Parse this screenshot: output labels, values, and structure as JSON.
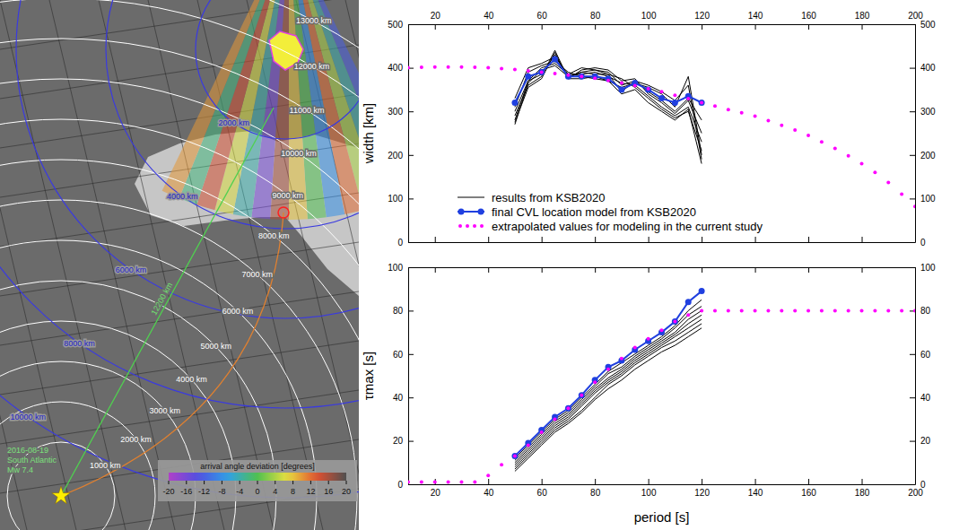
{
  "map": {
    "type": "map",
    "event_label": [
      "2016-08-19",
      "South Atlantic",
      "Mw 7.4"
    ],
    "epicentral_distances": [
      {
        "value": 1000,
        "label": "1000 km"
      },
      {
        "value": 2000,
        "label": "2000 km"
      },
      {
        "value": 3000,
        "label": "3000 km"
      },
      {
        "value": 4000,
        "label": "4000 km"
      },
      {
        "value": 5000,
        "label": "5000 km"
      },
      {
        "value": 6000,
        "label": "6000 km"
      },
      {
        "value": 7000,
        "label": "7000 km"
      },
      {
        "value": 8000,
        "label": "8000 km"
      },
      {
        "value": 9000,
        "label": "9000 km"
      },
      {
        "value": 10000,
        "label": "10000 km"
      },
      {
        "value": 11000,
        "label": "11000 km"
      },
      {
        "value": 12000,
        "label": "12000 km"
      },
      {
        "value": 13000,
        "label": "13000 km"
      }
    ],
    "station_distances": [
      {
        "value": 2000,
        "label": "2000 km"
      },
      {
        "value": 4000,
        "label": "4000 km"
      },
      {
        "value": 6000,
        "label": "6000 km"
      },
      {
        "value": 8000,
        "label": "8000 km"
      },
      {
        "value": 10000,
        "label": "10000 km"
      }
    ],
    "path_label": "12200 km",
    "beam_deviations": [
      -12,
      -4,
      4,
      12,
      -8,
      0,
      8,
      16,
      -16,
      -4,
      6,
      14,
      -2,
      10
    ],
    "colorbar": {
      "label": "arrival angle deviation [degrees]",
      "range": [
        -20,
        20
      ],
      "ticks": [
        -20,
        -16,
        -12,
        -8,
        -4,
        0,
        4,
        8,
        12,
        16,
        20
      ]
    }
  },
  "chart_data": [
    {
      "type": "line",
      "ylabel": "width [km]",
      "xlim": [
        10,
        200
      ],
      "xticks": [
        20,
        40,
        60,
        80,
        100,
        120,
        140,
        160,
        180,
        200
      ],
      "ylim": [
        0,
        500
      ],
      "yticks": [
        0,
        100,
        200,
        300,
        400,
        500
      ],
      "legend": "lower left",
      "series": [
        {
          "name": "results from KSB2020",
          "color": "#000000",
          "line_style": "solid",
          "x": [
            50,
            55,
            60,
            65,
            70,
            75,
            80,
            85,
            90,
            95,
            100,
            105,
            110,
            115,
            120
          ],
          "values": [
            320,
            380,
            390,
            420,
            380,
            380,
            380,
            375,
            350,
            365,
            350,
            330,
            320,
            335,
            320
          ]
        },
        {
          "color": "#000000",
          "line_style": "solid",
          "x": [
            50,
            55,
            60,
            65,
            70,
            75,
            80,
            85,
            90,
            95,
            100,
            105,
            110,
            115,
            120
          ],
          "values": [
            300,
            370,
            385,
            430,
            378,
            390,
            395,
            390,
            360,
            370,
            345,
            325,
            300,
            330,
            280
          ]
        },
        {
          "color": "#000000",
          "line_style": "solid",
          "x": [
            50,
            55,
            60,
            65,
            70,
            75,
            80,
            85,
            90,
            95,
            100,
            105,
            110,
            115,
            120
          ],
          "values": [
            290,
            360,
            380,
            440,
            375,
            395,
            400,
            395,
            370,
            375,
            340,
            320,
            295,
            325,
            250
          ]
        },
        {
          "color": "#000000",
          "line_style": "solid",
          "x": [
            50,
            55,
            60,
            65,
            70,
            75,
            80,
            85,
            90,
            95,
            100,
            105,
            110,
            115,
            120
          ],
          "values": [
            280,
            370,
            400,
            410,
            385,
            385,
            390,
            380,
            365,
            360,
            335,
            310,
            290,
            310,
            230
          ]
        },
        {
          "color": "#000000",
          "line_style": "solid",
          "x": [
            50,
            55,
            60,
            65,
            70,
            75,
            80,
            85,
            90,
            95,
            100,
            105,
            110,
            115,
            120
          ],
          "values": [
            270,
            365,
            395,
            405,
            380,
            390,
            385,
            385,
            375,
            355,
            330,
            305,
            285,
            300,
            210
          ]
        },
        {
          "color": "#000000",
          "line_style": "solid",
          "x": [
            50,
            55,
            60,
            65,
            70,
            75,
            80,
            85,
            90,
            95,
            100,
            105,
            110,
            115,
            120
          ],
          "values": [
            310,
            390,
            405,
            415,
            390,
            380,
            375,
            370,
            355,
            365,
            355,
            340,
            310,
            380,
            200
          ]
        },
        {
          "color": "#000000",
          "line_style": "solid",
          "x": [
            50,
            55,
            60,
            65,
            70,
            75,
            80,
            85,
            90,
            95,
            100,
            105,
            110,
            115,
            120
          ],
          "values": [
            330,
            400,
            410,
            425,
            385,
            400,
            395,
            385,
            345,
            370,
            360,
            345,
            325,
            360,
            190
          ]
        },
        {
          "color": "#000000",
          "line_style": "solid",
          "x": [
            50,
            55,
            60,
            65,
            70,
            75,
            80,
            85,
            90,
            95,
            100,
            105,
            110,
            115,
            120
          ],
          "values": [
            275,
            355,
            375,
            435,
            375,
            375,
            380,
            370,
            340,
            350,
            320,
            300,
            280,
            305,
            180
          ]
        },
        {
          "name": "final CVL location model from KSB2020",
          "color": "#2040e0",
          "line_style": "solid",
          "marker": "circle",
          "x": [
            50,
            55,
            60,
            65,
            70,
            75,
            80,
            85,
            90,
            95,
            100,
            105,
            110,
            115,
            120
          ],
          "values": [
            320,
            380,
            390,
            420,
            380,
            380,
            380,
            375,
            350,
            365,
            350,
            330,
            320,
            335,
            320
          ]
        },
        {
          "name": "extrapolated values for modeling in the current study",
          "color": "#ff00ff",
          "line_style": "none",
          "marker": "dot",
          "x": [
            10,
            15,
            20,
            25,
            30,
            35,
            40,
            45,
            50,
            55,
            60,
            65,
            70,
            75,
            80,
            85,
            90,
            95,
            100,
            105,
            110,
            115,
            120,
            125,
            130,
            135,
            140,
            145,
            150,
            155,
            160,
            165,
            170,
            175,
            180,
            185,
            190,
            195,
            200
          ],
          "values": [
            400,
            401,
            402,
            402,
            402,
            401,
            400,
            398,
            396,
            393,
            390,
            387,
            383,
            380,
            376,
            371,
            365,
            359,
            352,
            345,
            337,
            329,
            320,
            312,
            304,
            297,
            289,
            279,
            268,
            257,
            245,
            230,
            215,
            198,
            180,
            160,
            137,
            110,
            82
          ]
        }
      ]
    },
    {
      "type": "line",
      "ylabel": "τmax [s]",
      "xlabel": "period [s]",
      "xlim": [
        10,
        200
      ],
      "xticks": [
        20,
        40,
        60,
        80,
        100,
        120,
        140,
        160,
        180,
        200
      ],
      "ylim": [
        0,
        100
      ],
      "yticks": [
        0,
        20,
        40,
        60,
        80,
        100
      ],
      "series": [
        {
          "color": "#000000",
          "line_style": "solid",
          "x": [
            50,
            55,
            60,
            65,
            70,
            75,
            80,
            85,
            90,
            95,
            100,
            105,
            110,
            115,
            120
          ],
          "values": [
            13,
            19,
            25,
            31,
            35,
            41,
            48,
            54,
            57,
            62,
            66,
            70,
            75,
            84,
            89
          ]
        },
        {
          "color": "#000000",
          "line_style": "solid",
          "x": [
            50,
            55,
            60,
            65,
            70,
            75,
            80,
            85,
            90,
            95,
            100,
            105,
            110,
            115,
            120
          ],
          "values": [
            12,
            18,
            24,
            30,
            34,
            40,
            46,
            52,
            56,
            60,
            64,
            68,
            73,
            80,
            85
          ]
        },
        {
          "color": "#000000",
          "line_style": "solid",
          "x": [
            50,
            55,
            60,
            65,
            70,
            75,
            80,
            85,
            90,
            95,
            100,
            105,
            110,
            115,
            120
          ],
          "values": [
            11,
            17,
            23,
            29,
            33,
            39,
            45,
            51,
            54,
            59,
            63,
            67,
            72,
            78,
            82
          ]
        },
        {
          "color": "#000000",
          "line_style": "solid",
          "x": [
            50,
            55,
            60,
            65,
            70,
            75,
            80,
            85,
            90,
            95,
            100,
            105,
            110,
            115,
            120
          ],
          "values": [
            10,
            16,
            22,
            28,
            32,
            38,
            44,
            49,
            53,
            58,
            62,
            66,
            70,
            76,
            80
          ]
        },
        {
          "color": "#000000",
          "line_style": "solid",
          "x": [
            50,
            55,
            60,
            65,
            70,
            75,
            80,
            85,
            90,
            95,
            100,
            105,
            110,
            115,
            120
          ],
          "values": [
            9,
            15,
            21,
            27,
            31,
            37,
            43,
            48,
            52,
            57,
            61,
            65,
            69,
            74,
            78
          ]
        },
        {
          "color": "#000000",
          "line_style": "solid",
          "x": [
            50,
            55,
            60,
            65,
            70,
            75,
            80,
            85,
            90,
            95,
            100,
            105,
            110,
            115,
            120
          ],
          "values": [
            8,
            14,
            20,
            26,
            30,
            36,
            42,
            47,
            51,
            56,
            60,
            64,
            68,
            72,
            76
          ]
        },
        {
          "color": "#000000",
          "line_style": "solid",
          "x": [
            50,
            55,
            60,
            65,
            70,
            75,
            80,
            85,
            90,
            95,
            100,
            105,
            110,
            115,
            120
          ],
          "values": [
            7,
            13,
            19,
            25,
            29,
            34,
            40,
            46,
            50,
            55,
            59,
            63,
            66,
            70,
            74
          ]
        },
        {
          "color": "#000000",
          "line_style": "solid",
          "x": [
            50,
            55,
            60,
            65,
            70,
            75,
            80,
            85,
            90,
            95,
            100,
            105,
            110,
            115,
            120
          ],
          "values": [
            6,
            12,
            18,
            24,
            28,
            33,
            39,
            44,
            48,
            53,
            57,
            61,
            64,
            68,
            72
          ]
        },
        {
          "color": "#2040e0",
          "line_style": "solid",
          "marker": "circle",
          "x": [
            50,
            55,
            60,
            65,
            70,
            75,
            80,
            85,
            90,
            95,
            100,
            105,
            110,
            115,
            120
          ],
          "values": [
            13,
            19,
            25,
            31,
            35,
            41,
            48,
            54,
            57,
            62,
            66,
            70,
            75,
            84,
            89
          ]
        },
        {
          "color": "#ff00ff",
          "line_style": "none",
          "marker": "dot",
          "x": [
            10,
            15,
            20,
            25,
            30,
            35,
            40,
            45,
            50,
            55,
            60,
            65,
            70,
            75,
            80,
            85,
            90,
            95,
            100,
            105,
            110,
            115,
            120,
            125,
            130,
            135,
            140,
            145,
            150,
            155,
            160,
            165,
            170,
            175,
            180,
            185,
            190,
            195,
            200
          ],
          "values": [
            1,
            1,
            1,
            1,
            1,
            1,
            4,
            9,
            13,
            18,
            24,
            30,
            35,
            41,
            47,
            53,
            58,
            63,
            67,
            71,
            75,
            78,
            80,
            80,
            80,
            80,
            80,
            80,
            80,
            80,
            80,
            80,
            80,
            80,
            80,
            80,
            80,
            80,
            80
          ]
        }
      ]
    }
  ]
}
